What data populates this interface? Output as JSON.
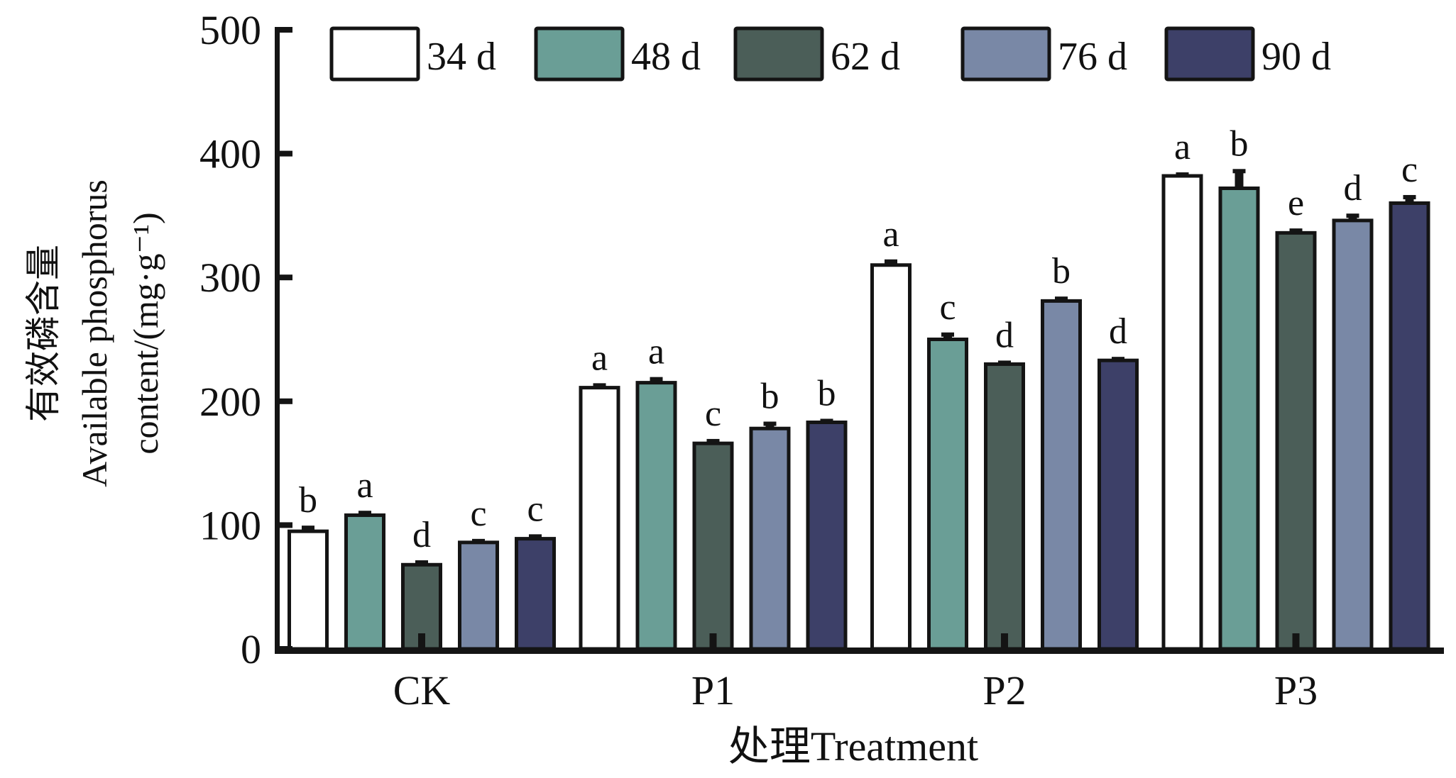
{
  "chart_data": {
    "type": "bar",
    "title": "",
    "xlabel": "处理Treatment",
    "ylabel_lines": [
      "有效磷含量",
      "Available phosphorus",
      "content/(mg·g⁻¹)"
    ],
    "ylim": [
      0,
      500
    ],
    "yticks": [
      0,
      100,
      200,
      300,
      400,
      500
    ],
    "ytick_labels": [
      "0",
      "100",
      "200",
      "300",
      "400",
      "500"
    ],
    "grid": false,
    "legend_position": "top",
    "categories": [
      "CK",
      "P1",
      "P2",
      "P3"
    ],
    "series": [
      {
        "name": "34 d",
        "color": "#ffffff",
        "values": [
          95,
          211,
          310,
          382
        ],
        "errors": [
          4,
          3,
          4,
          2
        ],
        "letters": [
          "b",
          "a",
          "a",
          "a"
        ]
      },
      {
        "name": "48 d",
        "color": "#6a9e96",
        "values": [
          108,
          215,
          250,
          372
        ],
        "errors": [
          3,
          4,
          5,
          15
        ],
        "letters": [
          "a",
          "a",
          "c",
          "b"
        ]
      },
      {
        "name": "62 d",
        "color": "#4b5e58",
        "values": [
          68,
          166,
          230,
          336
        ],
        "errors": [
          3,
          3,
          2,
          3
        ],
        "letters": [
          "d",
          "c",
          "d",
          "e"
        ]
      },
      {
        "name": "76 d",
        "color": "#7988a6",
        "values": [
          86,
          178,
          281,
          346
        ],
        "errors": [
          2,
          5,
          3,
          5
        ],
        "letters": [
          "c",
          "b",
          "b",
          "d"
        ]
      },
      {
        "name": "90 d",
        "color": "#3d4068",
        "values": [
          89,
          183,
          233,
          360
        ],
        "errors": [
          3,
          2,
          2,
          6
        ],
        "letters": [
          "c",
          "b",
          "d",
          "c"
        ]
      }
    ]
  }
}
